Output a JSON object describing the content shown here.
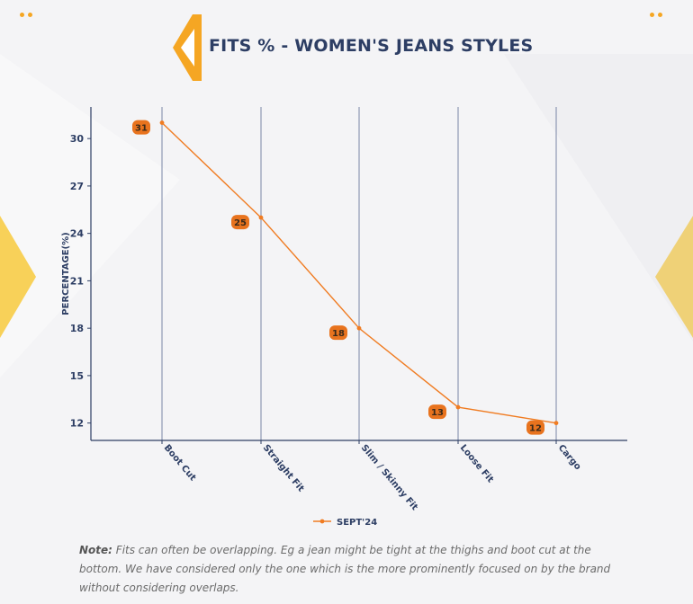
{
  "header": {
    "title": "FITS % - WOMEN'S JEANS STYLES"
  },
  "chart_data": {
    "type": "line",
    "title": "FITS % - WOMEN'S JEANS STYLES",
    "xlabel": "",
    "ylabel": "PERCENTAGE(%)",
    "categories": [
      "Boot Cut",
      "Straight Fit",
      "Slim / Skinny Fit",
      "Loose Fit",
      "Cargo"
    ],
    "series": [
      {
        "name": "SEPT'24",
        "values": [
          31,
          25,
          18,
          13,
          12
        ],
        "color": "#f07c22"
      }
    ],
    "yticks": [
      12,
      15,
      18,
      21,
      24,
      27,
      30
    ],
    "ylim": [
      10.9,
      32
    ],
    "grid": "vertical",
    "legend_position": "bottom-center",
    "colors": {
      "axis": "#2d3e64",
      "label_fill": "#e8731e",
      "label_text": "#3a2a1a"
    }
  },
  "note": {
    "label": "Note:",
    "text": "Fits can often be overlapping. Eg a jean might be tight at the thighs and boot cut at the bottom. We have considered only the one which is the more prominently focused on by the brand without considering overlaps."
  },
  "colors": {
    "accent": "#f5a623",
    "title": "#2d3e64"
  }
}
